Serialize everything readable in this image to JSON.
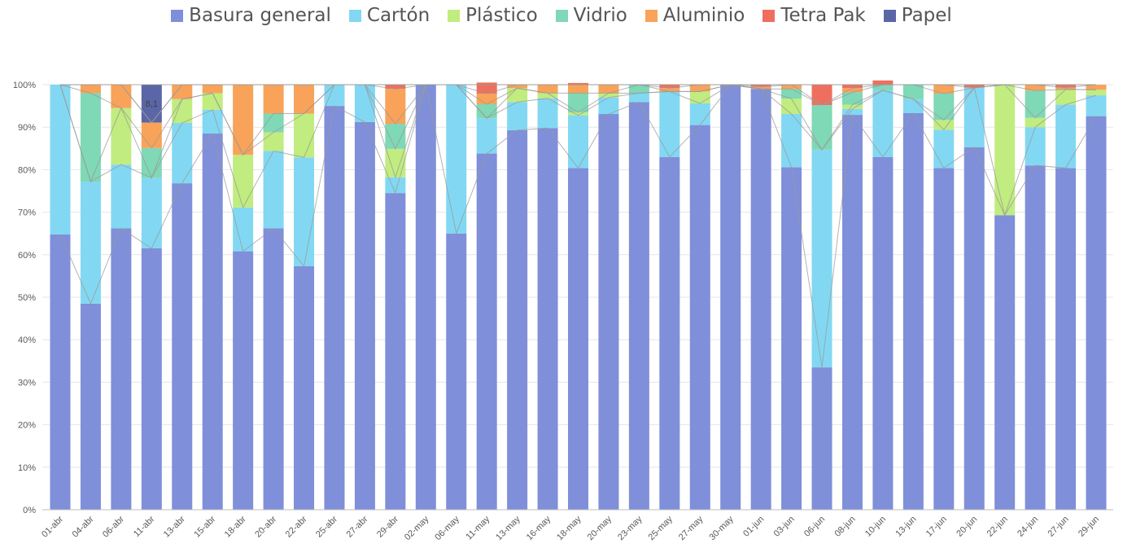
{
  "chart_data": {
    "type": "bar",
    "stacked": true,
    "percent_stacked": true,
    "title": "",
    "xlabel": "",
    "ylabel": "",
    "ylim": [
      0,
      100
    ],
    "y_ticks": [
      "0%",
      "10%",
      "20%",
      "30%",
      "40%",
      "50%",
      "60%",
      "70%",
      "80%",
      "90%",
      "100%"
    ],
    "grid": true,
    "legend_position": "top",
    "categories": [
      "01-abr",
      "04-abr",
      "06-abr",
      "11-abr",
      "13-abr",
      "15-abr",
      "18-abr",
      "20-abr",
      "22-abr",
      "25-abr",
      "27-abr",
      "29-abr",
      "02-may",
      "06-may",
      "11-may",
      "13-may",
      "16-may",
      "18-may",
      "20-may",
      "23-may",
      "25-may",
      "27-may",
      "30-may",
      "01-jun",
      "03-jun",
      "06-jun",
      "08-jun",
      "10-jun",
      "13-jun",
      "17-jun",
      "20-jun",
      "22-jun",
      "24-jun",
      "27-jun",
      "29-jun"
    ],
    "series": [
      {
        "name": "Basura general",
        "color": "#7f8fd9",
        "values": [
          64.8,
          48.5,
          66.2,
          61.5,
          76.8,
          88.5,
          60.8,
          66.2,
          57.3,
          95.0,
          91.2,
          74.5,
          100,
          65.0,
          83.8,
          89.3,
          89.8,
          80.4,
          93.1,
          95.9,
          83.0,
          90.5,
          100,
          99.0,
          80.6,
          33.5,
          92.9,
          83.0,
          93.3,
          80.4,
          85.3,
          69.3,
          81.0,
          80.4,
          92.6
        ]
      },
      {
        "name": "Cartón",
        "color": "#82d8f2",
        "values": [
          35.2,
          28.7,
          15.0,
          16.6,
          14.2,
          5.6,
          10.3,
          18.2,
          25.6,
          5.0,
          8.8,
          3.7,
          0,
          35.0,
          8.3,
          6.6,
          7.0,
          12.4,
          3.9,
          2.1,
          15.4,
          5.1,
          0,
          0,
          12.5,
          51.2,
          1.4,
          15.7,
          3.3,
          9.0,
          14.0,
          0,
          9.0,
          14.9,
          4.9
        ]
      },
      {
        "name": "Plástico",
        "color": "#c1ec7f",
        "values": [
          0,
          0,
          13.3,
          0,
          5.6,
          3.9,
          12.4,
          4.4,
          10.3,
          0,
          0,
          6.7,
          0,
          0,
          0,
          3.3,
          1.2,
          0.7,
          1.0,
          0,
          0,
          2.8,
          0,
          0,
          3.6,
          0,
          1.0,
          0,
          0,
          2.3,
          0,
          30.7,
          2.2,
          3.6,
          1.3
        ]
      },
      {
        "name": "Vidrio",
        "color": "#7fd8b6",
        "values": [
          0,
          20.8,
          0,
          7.0,
          0,
          0,
          0,
          4.4,
          0,
          0,
          0,
          5.9,
          0,
          0,
          3.3,
          0,
          0,
          4.5,
          0,
          2.0,
          0,
          0,
          0,
          0,
          2.3,
          10.5,
          2.9,
          1.3,
          3.4,
          6.2,
          0,
          0,
          6.4,
          0,
          0
        ]
      },
      {
        "name": "Aluminio",
        "color": "#f8a359",
        "values": [
          0,
          2.0,
          5.5,
          6.0,
          3.4,
          2.0,
          16.5,
          6.8,
          6.8,
          0,
          0,
          8.2,
          0,
          0,
          2.5,
          0.8,
          2.0,
          2.0,
          2.0,
          0,
          0.8,
          1.6,
          0,
          0.5,
          1.0,
          0,
          1.0,
          0,
          0,
          2.1,
          0,
          0,
          1.4,
          0.4,
          1.2
        ]
      },
      {
        "name": "Tetra Pak",
        "color": "#ef6f5e",
        "values": [
          0,
          0,
          0,
          0,
          0,
          0,
          0,
          0,
          0,
          0,
          0,
          1.0,
          0,
          0,
          2.6,
          0,
          0,
          0.4,
          0,
          0,
          0.8,
          0,
          0,
          0.5,
          0,
          4.8,
          0.8,
          1.0,
          0,
          0,
          0.7,
          0,
          0,
          0.7,
          0
        ]
      },
      {
        "name": "Papel",
        "color": "#5a66a6",
        "values": [
          0,
          0,
          0,
          8.9,
          0,
          0,
          0,
          0,
          0,
          0,
          0,
          0,
          0,
          0,
          0,
          0,
          0,
          0,
          0,
          0,
          0,
          0,
          0,
          0,
          0,
          0,
          0,
          0,
          0,
          0,
          0,
          0,
          0,
          0,
          0
        ]
      }
    ],
    "data_labels": [
      {
        "category": "11-abr",
        "series": "Papel",
        "text": "8,1"
      }
    ]
  }
}
